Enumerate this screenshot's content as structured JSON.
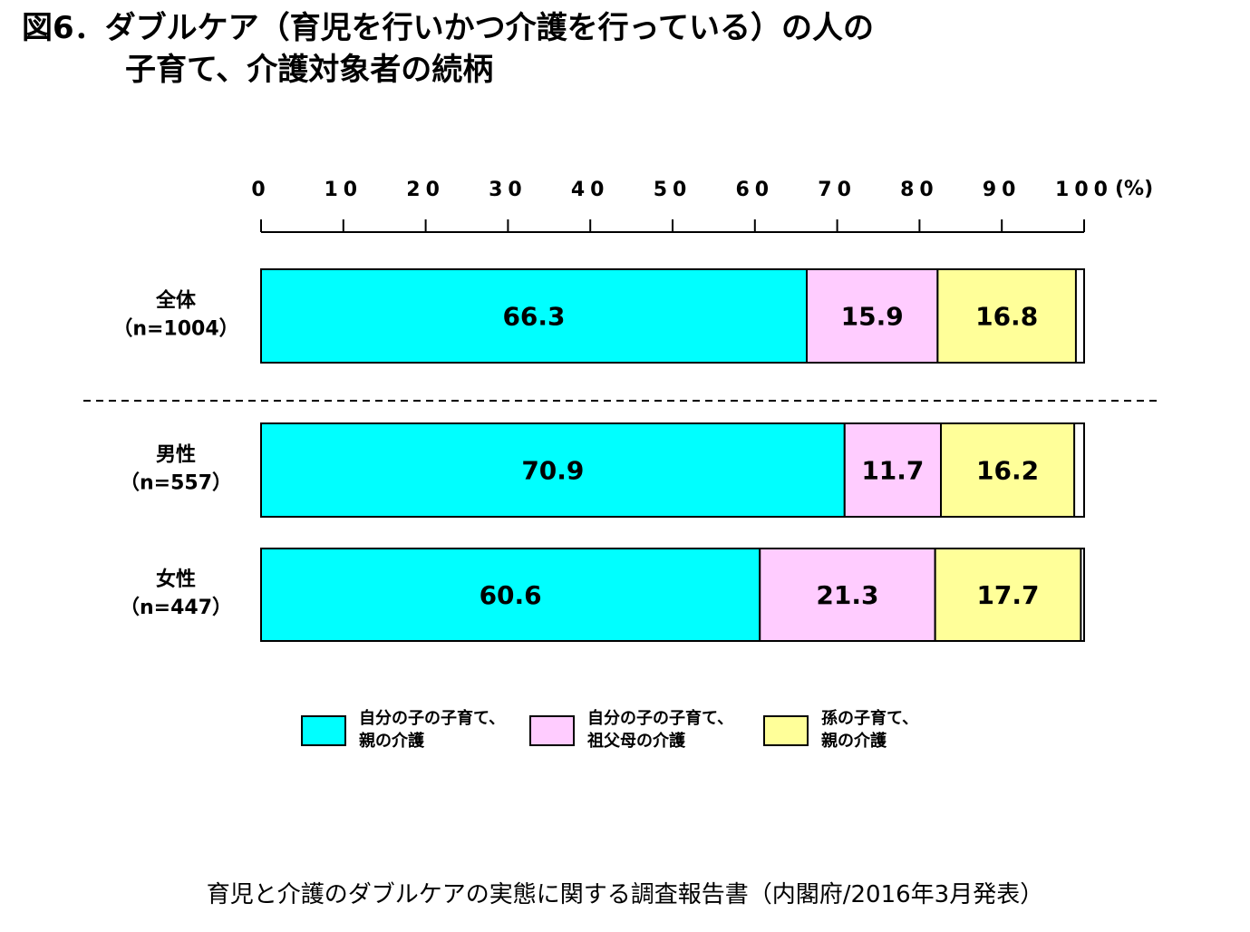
{
  "title": {
    "line1": "図6．ダブルケア（育児を行いかつ介護を行っている）の人の",
    "line2": "子育て、介護対象者の続柄"
  },
  "source": "育児と介護のダブルケアの実態に関する調査報告書（内閣府/2016年3月発表）",
  "legend": [
    {
      "label": "自分の子の子育て、\n親の介護",
      "color": "#00FFFF"
    },
    {
      "label": "自分の子の子育て、\n祖父母の介護",
      "color": "#FFCCFF"
    },
    {
      "label": "孫の子育て、\n親の介護",
      "color": "#FFFF99"
    }
  ],
  "chart_data": {
    "type": "bar",
    "orientation": "horizontal",
    "stacked": true,
    "xlim": [
      0,
      100
    ],
    "x_ticks": [
      "0",
      "10",
      "20",
      "30",
      "40",
      "50",
      "60",
      "70",
      "80",
      "90",
      "100"
    ],
    "x_unit": "(%)",
    "categories": [
      {
        "name": "全体",
        "n": "（n=1004）"
      },
      {
        "name": "男性",
        "n": "（n=557）"
      },
      {
        "name": "女性",
        "n": "（n=447）"
      }
    ],
    "series": [
      {
        "name": "自分の子の子育て、親の介護",
        "color": "#00FFFF",
        "values": [
          66.3,
          70.9,
          60.6
        ]
      },
      {
        "name": "自分の子の子育て、祖父母の介護",
        "color": "#FFCCFF",
        "values": [
          15.9,
          11.7,
          21.3
        ]
      },
      {
        "name": "孫の子育て、親の介護",
        "color": "#FFFF99",
        "values": [
          16.8,
          16.2,
          17.7
        ]
      }
    ],
    "value_labels": [
      [
        "66.3",
        "15.9",
        "16.8"
      ],
      [
        "70.9",
        "11.7",
        "16.2"
      ],
      [
        "60.6",
        "21.3",
        "17.7"
      ]
    ],
    "separator": "dashed line between 全体 and 男性",
    "grid": false
  }
}
